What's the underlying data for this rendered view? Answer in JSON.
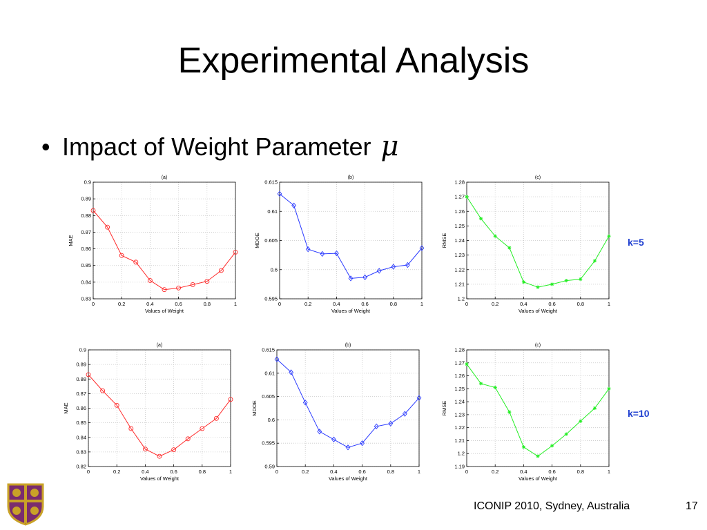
{
  "slide": {
    "title": "Experimental Analysis",
    "bullet": "Impact of Weight Parameter",
    "bullet_symbol": "μ",
    "footer": "ICONIP 2010, Sydney, Australia",
    "page_number": "17",
    "row_labels": [
      "k=5",
      "k=10"
    ]
  },
  "colors": {
    "mae": "#ff2a2a",
    "mdoe": "#2a3aff",
    "rmse": "#22ee22",
    "label": "#1f3fd0"
  },
  "chart_data": [
    {
      "type": "line",
      "title": "(a)",
      "xlabel": "Values of Weight",
      "ylabel": "MAE",
      "marker": "circle",
      "color": "#ff2a2a",
      "x": [
        0,
        0.1,
        0.2,
        0.3,
        0.4,
        0.5,
        0.6,
        0.7,
        0.8,
        0.9,
        1
      ],
      "values": [
        0.883,
        0.873,
        0.856,
        0.852,
        0.841,
        0.8355,
        0.8365,
        0.8385,
        0.8405,
        0.847,
        0.858
      ],
      "xlim": [
        0,
        1
      ],
      "ylim": [
        0.83,
        0.9
      ],
      "xticks": [
        "0",
        "0.2",
        "0.4",
        "0.6",
        "0.8",
        "1"
      ],
      "xtick_values": [
        0,
        0.2,
        0.4,
        0.6,
        0.8,
        1
      ],
      "yticks": [
        "0.83",
        "0.84",
        "0.85",
        "0.86",
        "0.87",
        "0.88",
        "0.89",
        "0.9"
      ],
      "ytick_values": [
        0.83,
        0.84,
        0.85,
        0.86,
        0.87,
        0.88,
        0.89,
        0.9
      ],
      "grid": true
    },
    {
      "type": "line",
      "title": "(b)",
      "xlabel": "Values of Weight",
      "ylabel": "MDOE",
      "marker": "diamond",
      "color": "#2a3aff",
      "x": [
        0,
        0.1,
        0.2,
        0.3,
        0.4,
        0.5,
        0.6,
        0.7,
        0.8,
        0.9,
        1
      ],
      "values": [
        0.613,
        0.611,
        0.6035,
        0.6027,
        0.6028,
        0.5985,
        0.5987,
        0.5998,
        0.6005,
        0.6008,
        0.6037
      ],
      "xlim": [
        0,
        1
      ],
      "ylim": [
        0.595,
        0.615
      ],
      "xticks": [
        "0",
        "0.2",
        "0.4",
        "0.6",
        "0.8",
        "1"
      ],
      "xtick_values": [
        0,
        0.2,
        0.4,
        0.6,
        0.8,
        1
      ],
      "yticks": [
        "0.595",
        "0.6",
        "0.605",
        "0.61",
        "0.615"
      ],
      "ytick_values": [
        0.595,
        0.6,
        0.605,
        0.61,
        0.615
      ],
      "grid": true
    },
    {
      "type": "line",
      "title": "(c)",
      "xlabel": "Values of Weight",
      "ylabel": "RMSE",
      "marker": "star",
      "color": "#22ee22",
      "x": [
        0,
        0.1,
        0.2,
        0.3,
        0.4,
        0.5,
        0.6,
        0.7,
        0.8,
        0.9,
        1
      ],
      "values": [
        1.27,
        1.255,
        1.243,
        1.235,
        1.2115,
        1.208,
        1.21,
        1.2125,
        1.2135,
        1.226,
        1.243
      ],
      "xlim": [
        0,
        1
      ],
      "ylim": [
        1.2,
        1.28
      ],
      "xticks": [
        "0",
        "0.2",
        "0.4",
        "0.6",
        "0.8",
        "1"
      ],
      "xtick_values": [
        0,
        0.2,
        0.4,
        0.6,
        0.8,
        1
      ],
      "yticks": [
        "1.2",
        "1.21",
        "1.22",
        "1.23",
        "1.24",
        "1.25",
        "1.26",
        "1.27",
        "1.28"
      ],
      "ytick_values": [
        1.2,
        1.21,
        1.22,
        1.23,
        1.24,
        1.25,
        1.26,
        1.27,
        1.28
      ],
      "grid": true
    },
    {
      "type": "line",
      "title": "(a)",
      "xlabel": "Values of Weight",
      "ylabel": "MAE",
      "marker": "circle",
      "color": "#ff2a2a",
      "x": [
        0,
        0.1,
        0.2,
        0.3,
        0.4,
        0.5,
        0.6,
        0.7,
        0.8,
        0.9,
        1
      ],
      "values": [
        0.883,
        0.872,
        0.862,
        0.846,
        0.832,
        0.827,
        0.8315,
        0.839,
        0.846,
        0.853,
        0.866
      ],
      "xlim": [
        0,
        1
      ],
      "ylim": [
        0.82,
        0.9
      ],
      "xticks": [
        "0",
        "0.2",
        "0.4",
        "0.6",
        "0.8",
        "1"
      ],
      "xtick_values": [
        0,
        0.2,
        0.4,
        0.6,
        0.8,
        1
      ],
      "yticks": [
        "0.82",
        "0.83",
        "0.84",
        "0.85",
        "0.86",
        "0.87",
        "0.88",
        "0.89",
        "0.9"
      ],
      "ytick_values": [
        0.82,
        0.83,
        0.84,
        0.85,
        0.86,
        0.87,
        0.88,
        0.89,
        0.9
      ],
      "grid": true
    },
    {
      "type": "line",
      "title": "(b)",
      "xlabel": "Values of Weight",
      "ylabel": "MDOE",
      "marker": "diamond",
      "color": "#2a3aff",
      "x": [
        0,
        0.1,
        0.2,
        0.3,
        0.4,
        0.5,
        0.6,
        0.7,
        0.8,
        0.9,
        1
      ],
      "values": [
        0.613,
        0.6102,
        0.6037,
        0.5975,
        0.5958,
        0.5941,
        0.595,
        0.5986,
        0.5992,
        0.6013,
        0.6047
      ],
      "xlim": [
        0,
        1
      ],
      "ylim": [
        0.59,
        0.615
      ],
      "xticks": [
        "0",
        "0.2",
        "0.4",
        "0.6",
        "0.8",
        "1"
      ],
      "xtick_values": [
        0,
        0.2,
        0.4,
        0.6,
        0.8,
        1
      ],
      "yticks": [
        "0.59",
        "0.595",
        "0.6",
        "0.605",
        "0.61",
        "0.615"
      ],
      "ytick_values": [
        0.59,
        0.595,
        0.6,
        0.605,
        0.61,
        0.615
      ],
      "grid": true
    },
    {
      "type": "line",
      "title": "(c)",
      "xlabel": "Values of Weight",
      "ylabel": "RMSE",
      "marker": "star",
      "color": "#22ee22",
      "x": [
        0,
        0.1,
        0.2,
        0.3,
        0.4,
        0.5,
        0.6,
        0.7,
        0.8,
        0.9,
        1
      ],
      "values": [
        1.269,
        1.254,
        1.251,
        1.232,
        1.205,
        1.198,
        1.206,
        1.215,
        1.225,
        1.235,
        1.25
      ],
      "xlim": [
        0,
        1
      ],
      "ylim": [
        1.19,
        1.28
      ],
      "xticks": [
        "0",
        "0.2",
        "0.4",
        "0.6",
        "0.8",
        "1"
      ],
      "xtick_values": [
        0,
        0.2,
        0.4,
        0.6,
        0.8,
        1
      ],
      "yticks": [
        "1.19",
        "1.2",
        "1.21",
        "1.22",
        "1.23",
        "1.24",
        "1.25",
        "1.26",
        "1.27",
        "1.28"
      ],
      "ytick_values": [
        1.19,
        1.2,
        1.21,
        1.22,
        1.23,
        1.24,
        1.25,
        1.26,
        1.27,
        1.28
      ],
      "grid": true
    }
  ]
}
